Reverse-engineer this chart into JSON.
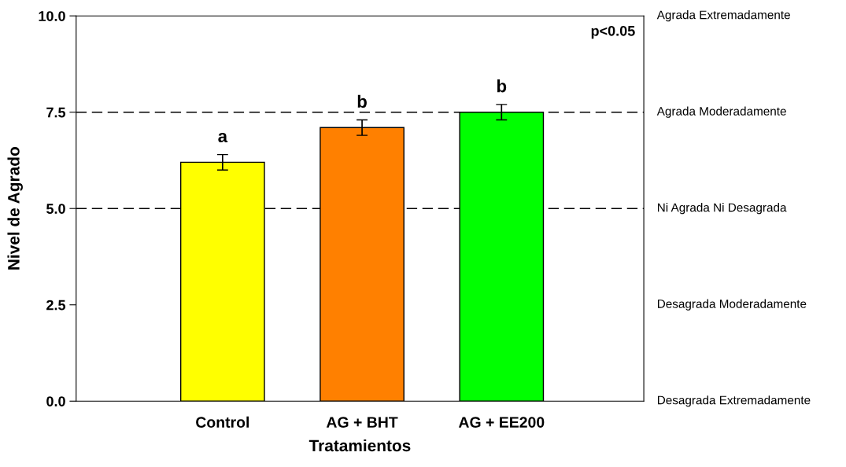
{
  "chart_data": {
    "type": "bar",
    "xlabel": "Tratamientos",
    "ylabel": "Nivel de Agrado",
    "categories": [
      "Control",
      "AG + BHT",
      "AG + EE200"
    ],
    "values": [
      6.2,
      7.1,
      7.5
    ],
    "errors": [
      0.2,
      0.2,
      0.2
    ],
    "colors": [
      "#ffff00",
      "#ff8000",
      "#00ff00"
    ],
    "ylim": [
      0,
      10
    ],
    "yticks": [
      {
        "value": 0,
        "label": "0.0"
      },
      {
        "value": 2.5,
        "label": "2.5"
      },
      {
        "value": 5,
        "label": "5.0"
      },
      {
        "value": 7.5,
        "label": "7.5"
      },
      {
        "value": 10,
        "label": "10.0"
      }
    ],
    "ref_lines": [
      {
        "axis": "y",
        "value": 7.5,
        "line_style": "dashed",
        "color": "#000000"
      },
      {
        "axis": "y",
        "value": 5,
        "line_style": "dashed",
        "color": "#000000"
      }
    ],
    "annotations": [
      {
        "text": "a",
        "x": "Control",
        "y": 6.4
      },
      {
        "text": "b",
        "x": "AG + BHT",
        "y": 7.3
      },
      {
        "text": "b",
        "x": "AG + EE200",
        "y": 7.7
      },
      "p<0.05",
      "Agrada Extremadamente",
      "Agrada Moderadamente",
      "Ni Agrada Ni Desagrada",
      "Desagrada Moderadamente",
      "Desagrada Extremadamente"
    ],
    "grid": false,
    "legend": false
  }
}
